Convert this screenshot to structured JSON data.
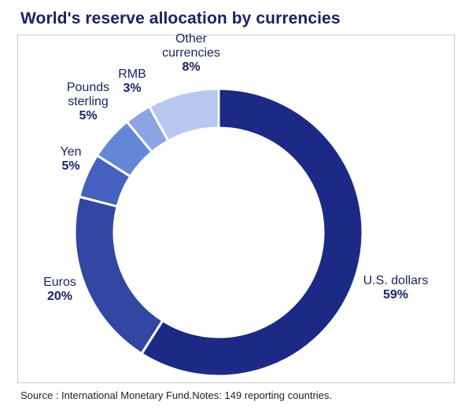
{
  "title": "World's reserve allocation by currencies",
  "source": "Source : International Monetary Fund.Notes: 149 reporting countries.",
  "chart_data": {
    "type": "pie",
    "variant": "donut",
    "title": "World's reserve allocation by currencies",
    "categories": [
      "U.S. dollars",
      "Euros",
      "Yen",
      "Pounds sterling",
      "RMB",
      "Other currencies"
    ],
    "values": [
      59,
      20,
      5,
      5,
      3,
      8
    ],
    "value_labels": [
      "59%",
      "20%",
      "5%",
      "5%",
      "3%",
      "8%"
    ],
    "colors": [
      "#1c2a85",
      "#3247a2",
      "#4660c0",
      "#6586d6",
      "#8ca4e3",
      "#b7c7ef"
    ],
    "label_lines": [
      [
        "U.S. dollars"
      ],
      [
        "Euros"
      ],
      [
        "Yen"
      ],
      [
        "Pounds",
        "sterling"
      ],
      [
        "RMB"
      ],
      [
        "Other",
        "currencies"
      ]
    ],
    "start_angle_deg": 0,
    "direction": "clockwise",
    "legend": "none"
  }
}
